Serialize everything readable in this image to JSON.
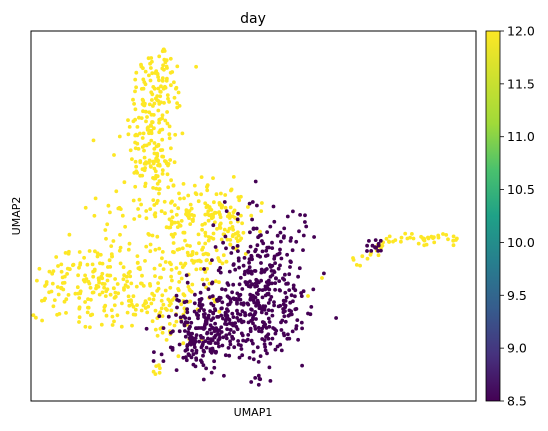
{
  "chart_data": {
    "type": "scatter",
    "title": "day",
    "xlabel": "UMAP1",
    "ylabel": "UMAP2",
    "x_ticks_shown": false,
    "y_ticks_shown": false,
    "grid": false,
    "colorbar": {
      "label": "",
      "colormap": "viridis",
      "range": [
        8.5,
        12.0
      ],
      "ticks": [
        "8.5",
        "9.0",
        "9.5",
        "10.0",
        "10.5",
        "11.0",
        "11.5",
        "12.0"
      ]
    },
    "series": [
      {
        "value": 12.0,
        "color": "#fde725"
      },
      {
        "value": 8.5,
        "color": "#440154"
      }
    ]
  }
}
